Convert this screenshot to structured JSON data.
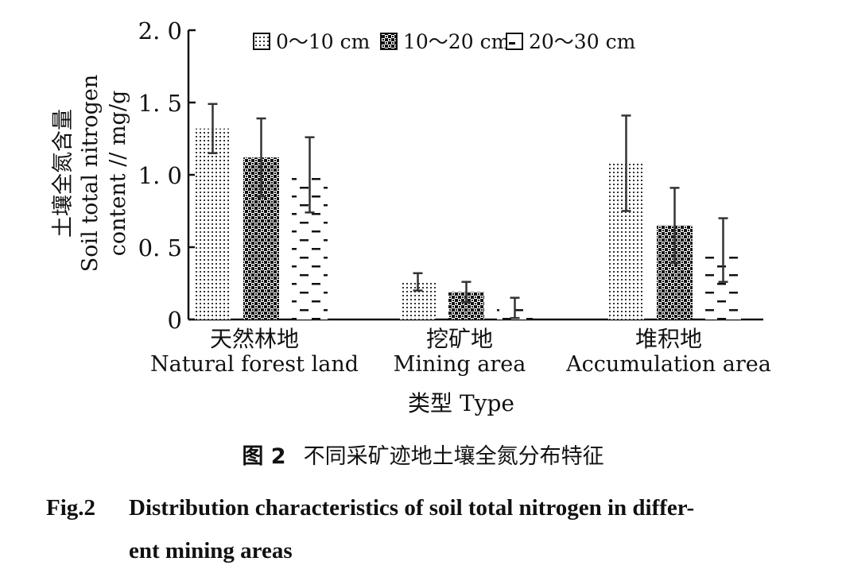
{
  "chart_data": {
    "type": "bar",
    "categories": [
      {
        "cn": "天然林地",
        "en": "Natural forest land"
      },
      {
        "cn": "挖矿地",
        "en": "Mining area"
      },
      {
        "cn": "堆积地",
        "en": "Accumulation area"
      }
    ],
    "series": [
      {
        "name": "0～10 cm",
        "pattern": "dots",
        "values": [
          1.32,
          0.26,
          1.08
        ],
        "errors": [
          0.17,
          0.06,
          0.33
        ]
      },
      {
        "name": "10～20 cm",
        "pattern": "checker",
        "values": [
          1.12,
          0.19,
          0.65
        ],
        "errors": [
          0.27,
          0.07,
          0.26
        ]
      },
      {
        "name": "20～30 cm",
        "pattern": "dashes",
        "values": [
          1.0,
          0.08,
          0.48
        ],
        "errors": [
          0.26,
          0.07,
          0.22
        ]
      }
    ],
    "ylim": [
      0,
      2.0
    ],
    "yticks": [
      "0",
      "0. 5",
      "1. 0",
      "1. 5",
      "2. 0"
    ],
    "ytick_values": [
      0,
      0.5,
      1.0,
      1.5,
      2.0
    ],
    "ylabel_cn": "土壤全氮含量",
    "ylabel_en_line1": "Soil total nitrogen",
    "ylabel_en_line2": "content // mg/g",
    "xlabel": "类型 Type",
    "legend_position": "top"
  },
  "caption": {
    "cn_fig": "图 2",
    "cn_text": "不同采矿迹地土壤全氮分布特征",
    "en_fig": "Fig.2",
    "en_line1": "Distribution characteristics of soil total nitrogen in differ-",
    "en_line2": "ent mining areas"
  }
}
